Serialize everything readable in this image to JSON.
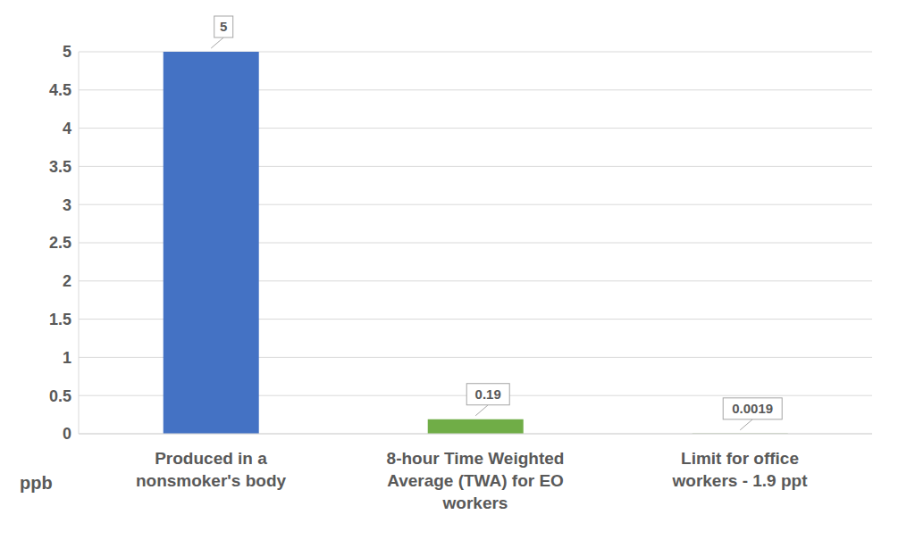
{
  "chart_data": {
    "type": "bar",
    "categories": [
      "Produced in a nonsmoker's body",
      "8-hour Time Weighted Average (TWA) for EO workers",
      "Limit for office workers - 1.9 ppt"
    ],
    "values": [
      5,
      0.19,
      0.0019
    ],
    "colors": [
      "#4472c4",
      "#70ad47",
      "#548235"
    ],
    "y_label": "ppb",
    "ylim": [
      0,
      5
    ],
    "yticks": [
      0,
      0.5,
      1,
      1.5,
      2,
      2.5,
      3,
      3.5,
      4,
      4.5,
      5
    ],
    "grid": true,
    "data_labels": true
  }
}
